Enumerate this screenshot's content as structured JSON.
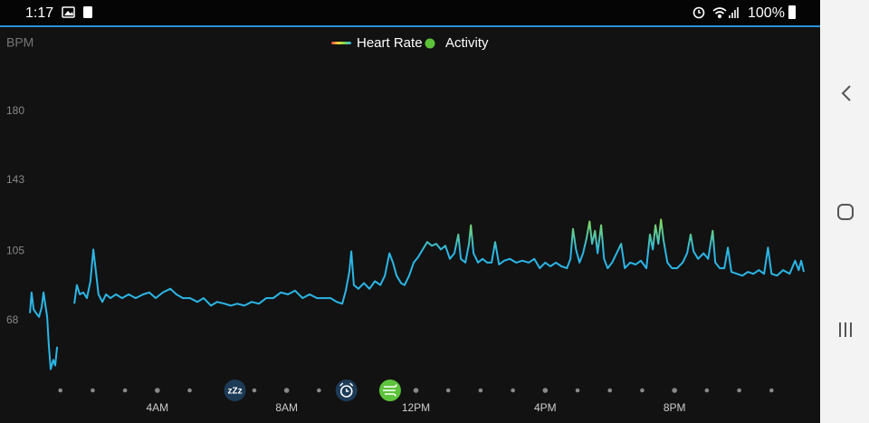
{
  "status_bar": {
    "time": "1:17",
    "battery": "100%"
  },
  "chart_data": {
    "type": "line",
    "y_label": "BPM",
    "xlim": [
      0,
      24
    ],
    "ylim": [
      36,
      220
    ],
    "yticks": [
      68,
      105,
      143,
      180
    ],
    "xticks": [
      {
        "value": 4,
        "label": "4AM"
      },
      {
        "value": 8,
        "label": "8AM"
      },
      {
        "value": 12,
        "label": "12PM"
      },
      {
        "value": 16,
        "label": "4PM"
      },
      {
        "value": 20,
        "label": "8PM"
      }
    ],
    "xticks_minor": [
      1,
      2,
      3,
      5,
      7,
      9,
      13,
      14,
      15,
      17,
      18,
      19,
      21,
      22,
      23
    ],
    "grid": false,
    "events": [
      {
        "x": 6.4,
        "color": "#1d3b57",
        "label": "zZz"
      },
      {
        "x": 9.85,
        "color": "#1d3b57"
      },
      {
        "x": 11.2,
        "color": "#5cc33a"
      }
    ],
    "legend_extra": {
      "name": "Activity",
      "color": "#5cc33a"
    },
    "series": [
      {
        "name": "Heart Rate",
        "color": "#2bb6e6",
        "gradient": [
          {
            "value": 105,
            "color": "#2bb6e6"
          },
          {
            "value": 124,
            "color": "#8ede48"
          }
        ],
        "x": [
          0.06,
          0.11,
          0.17,
          0.25,
          0.34,
          0.42,
          0.48,
          0.53,
          0.59,
          0.64,
          0.7,
          0.78,
          0.84,
          0.9,
          1.1,
          1.43,
          1.51,
          1.6,
          1.71,
          1.82,
          1.93,
          2.02,
          2.1,
          2.18,
          2.3,
          2.41,
          2.55,
          2.72,
          2.91,
          3.11,
          3.33,
          3.56,
          3.75,
          3.95,
          4.17,
          4.4,
          4.59,
          4.79,
          5.01,
          5.24,
          5.43,
          5.66,
          5.85,
          6.08,
          6.27,
          6.47,
          6.69,
          6.92,
          7.14,
          7.37,
          7.59,
          7.82,
          8.04,
          8.26,
          8.49,
          8.71,
          8.94,
          9.16,
          9.36,
          9.55,
          9.72,
          9.83,
          9.94,
          10.0,
          10.08,
          10.22,
          10.39,
          10.56,
          10.73,
          10.9,
          11.04,
          11.18,
          11.29,
          11.4,
          11.54,
          11.65,
          11.79,
          11.93,
          12.07,
          12.21,
          12.35,
          12.49,
          12.63,
          12.77,
          12.91,
          13.05,
          13.19,
          13.31,
          13.39,
          13.53,
          13.64,
          13.7,
          13.78,
          13.92,
          14.06,
          14.2,
          14.34,
          14.45,
          14.57,
          14.73,
          14.9,
          15.1,
          15.29,
          15.49,
          15.66,
          15.83,
          16.0,
          16.16,
          16.33,
          16.5,
          16.67,
          16.78,
          16.86,
          16.95,
          17.06,
          17.17,
          17.28,
          17.37,
          17.45,
          17.54,
          17.62,
          17.73,
          17.82,
          17.93,
          18.07,
          18.21,
          18.35,
          18.46,
          18.63,
          18.8,
          18.96,
          19.13,
          19.24,
          19.33,
          19.41,
          19.5,
          19.58,
          19.66,
          19.78,
          19.92,
          20.08,
          20.25,
          20.39,
          20.5,
          20.59,
          20.73,
          20.9,
          21.04,
          21.18,
          21.26,
          21.4,
          21.54,
          21.65,
          21.76,
          21.93,
          22.1,
          22.27,
          22.44,
          22.61,
          22.77,
          22.89,
          23.0,
          23.17,
          23.36,
          23.56,
          23.73,
          23.84,
          23.92,
          24.0
        ],
        "values": [
          72,
          83,
          74,
          72,
          70,
          75,
          83,
          77,
          70,
          55,
          42,
          47,
          44,
          54,
          null,
          77,
          87,
          82,
          83,
          80,
          89,
          106,
          94,
          82,
          78,
          82,
          80,
          82,
          80,
          82,
          80,
          82,
          83,
          80,
          83,
          85,
          82,
          80,
          80,
          78,
          80,
          76,
          78,
          77,
          76,
          77,
          76,
          78,
          77,
          80,
          80,
          83,
          82,
          84,
          80,
          82,
          80,
          80,
          80,
          78,
          77,
          84,
          94,
          105,
          87,
          85,
          88,
          85,
          89,
          87,
          92,
          104,
          99,
          92,
          88,
          87,
          92,
          99,
          102,
          106,
          110,
          108,
          109,
          106,
          108,
          101,
          104,
          114,
          101,
          99,
          109,
          119,
          104,
          99,
          101,
          99,
          99,
          110,
          98,
          100,
          101,
          99,
          100,
          99,
          101,
          96,
          99,
          97,
          99,
          97,
          96,
          101,
          117,
          106,
          99,
          104,
          112,
          121,
          109,
          116,
          104,
          119,
          101,
          96,
          99,
          104,
          109,
          96,
          99,
          98,
          100,
          96,
          114,
          106,
          119,
          109,
          122,
          111,
          99,
          96,
          96,
          99,
          104,
          114,
          105,
          101,
          104,
          101,
          116,
          99,
          96,
          96,
          107,
          94,
          93,
          92,
          94,
          93,
          95,
          93,
          107,
          93,
          92,
          95,
          93,
          100,
          95,
          100,
          94
        ]
      }
    ]
  }
}
